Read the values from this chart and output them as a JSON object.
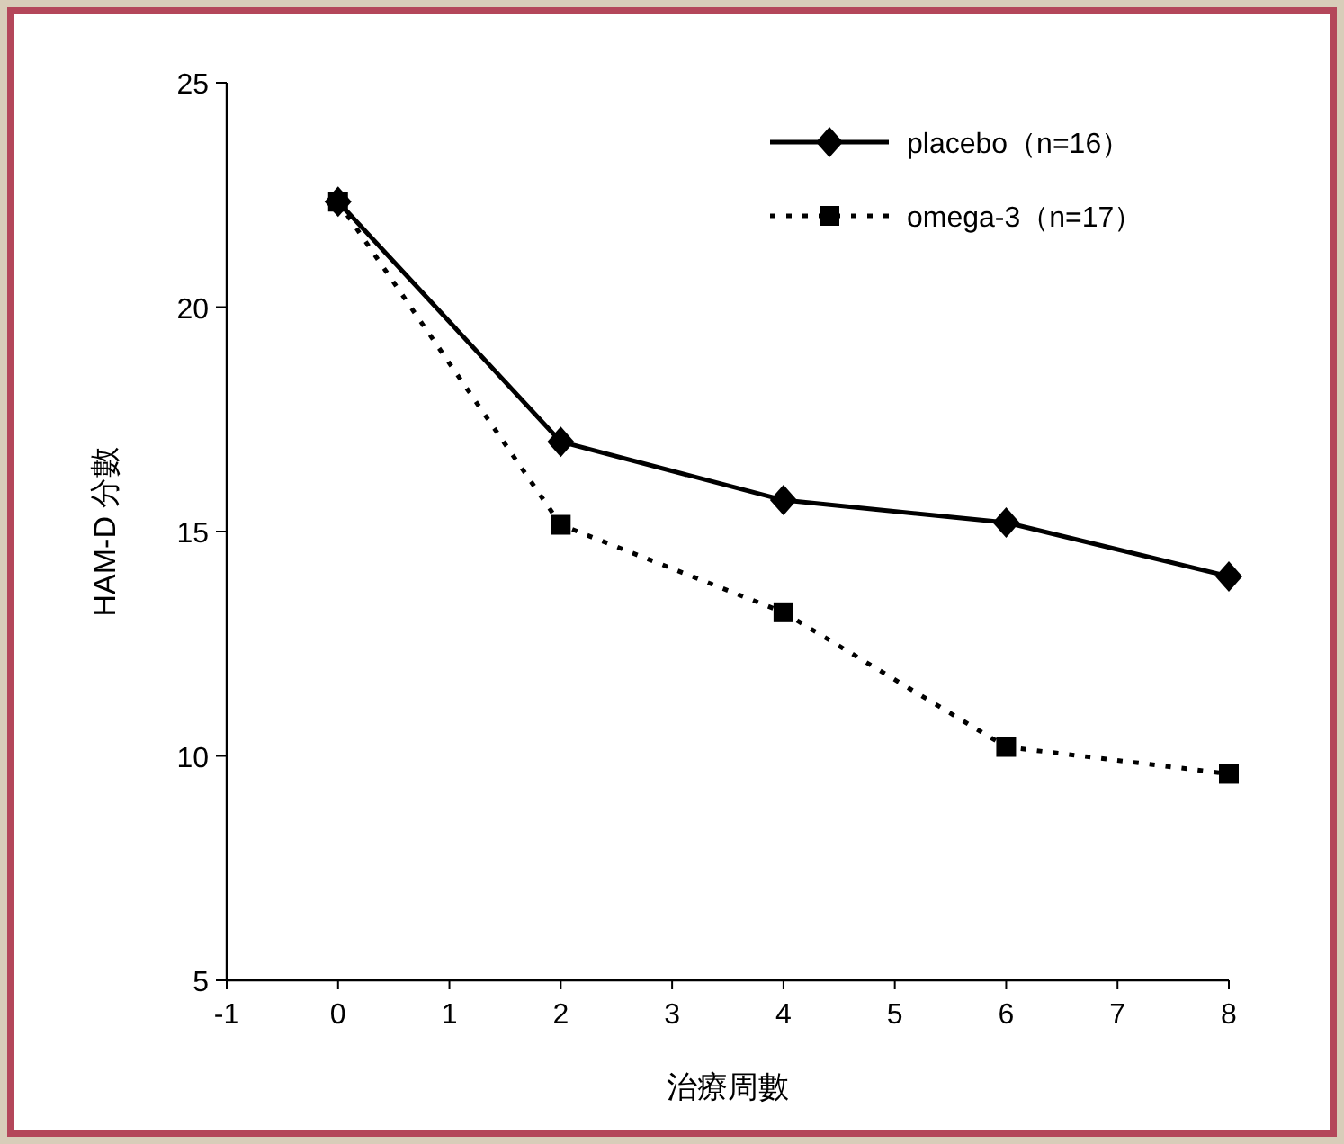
{
  "chart_data": {
    "type": "line",
    "xlabel": "治療周數",
    "ylabel": "HAM-D 分數",
    "x": [
      0,
      2,
      4,
      6,
      8
    ],
    "series": [
      {
        "name": "placebo（n=16）",
        "color": "#000000",
        "values": [
          22.35,
          17.0,
          15.7,
          15.2,
          14.0
        ],
        "marker": "diamond",
        "line_style": "solid"
      },
      {
        "name": "omega-3（n=17）",
        "color": "#000000",
        "values": [
          22.35,
          15.15,
          13.2,
          10.2,
          9.6
        ],
        "marker": "square",
        "line_style": "dotted"
      }
    ],
    "xlim": [
      -1,
      8
    ],
    "xticks": [
      -1,
      0,
      1,
      2,
      3,
      4,
      5,
      6,
      7,
      8
    ],
    "ylim": [
      5,
      25
    ],
    "yticks": [
      5,
      10,
      15,
      20,
      25
    ],
    "grid": false,
    "legend": "top right"
  }
}
